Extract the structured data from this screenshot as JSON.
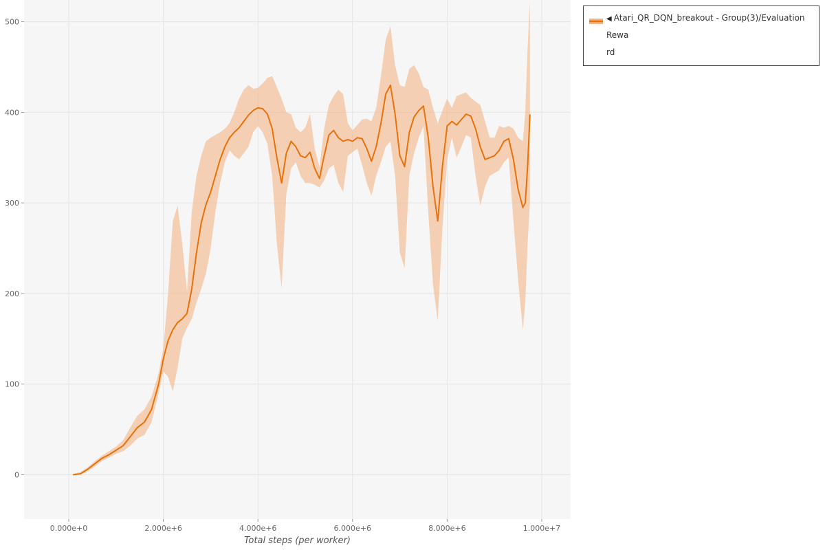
{
  "legend": {
    "marker": "◀",
    "label_lines": [
      "Atari_QR_DQN_breakout - Group(3)/Evaluation Rewa",
      "rd"
    ],
    "full_label": "Atari_QR_DQN_breakout - Group(3)/Evaluation Reward"
  },
  "chart_data": {
    "type": "line",
    "title": "",
    "xlabel": "Total steps (per worker)",
    "ylabel": "",
    "xlim": [
      -945000,
      10610000
    ],
    "ylim": [
      -49,
      524
    ],
    "grid": true,
    "legend_position": "top-right",
    "x_ticks": {
      "values": [
        0,
        2000000,
        4000000,
        6000000,
        8000000,
        10000000
      ],
      "labels": [
        "0.000e+0",
        "2.000e+6",
        "4.000e+6",
        "6.000e+6",
        "8.000e+6",
        "1.000e+7"
      ]
    },
    "y_ticks": {
      "values": [
        0,
        100,
        200,
        300,
        400,
        500
      ],
      "labels": [
        "0",
        "100",
        "200",
        "300",
        "400",
        "500"
      ]
    },
    "colors": {
      "plot_bg": "#f5f6f5",
      "grid": "#e3e6e4",
      "tick": "#999999",
      "tick_label": "#666666"
    },
    "series": [
      {
        "name": "Atari_QR_DQN_breakout - Group(3)/Evaluation Reward",
        "color": "#e8710a",
        "band_color": "#f3b587",
        "band_opacity": 0.6,
        "point_format": [
          "x",
          "mean",
          "lower",
          "upper"
        ],
        "points": [
          [
            100000,
            0,
            0,
            1
          ],
          [
            250000,
            1,
            0,
            3
          ],
          [
            400000,
            6,
            4,
            8
          ],
          [
            550000,
            12,
            9,
            15
          ],
          [
            700000,
            18,
            15,
            21
          ],
          [
            850000,
            22,
            19,
            26
          ],
          [
            1000000,
            27,
            23,
            31
          ],
          [
            1150000,
            32,
            26,
            38
          ],
          [
            1300000,
            42,
            32,
            52
          ],
          [
            1450000,
            52,
            40,
            65
          ],
          [
            1600000,
            58,
            44,
            72
          ],
          [
            1750000,
            72,
            58,
            86
          ],
          [
            1900000,
            100,
            90,
            112
          ],
          [
            2000000,
            128,
            114,
            140
          ],
          [
            2100000,
            148,
            108,
            200
          ],
          [
            2200000,
            160,
            92,
            280
          ],
          [
            2300000,
            168,
            118,
            297
          ],
          [
            2400000,
            172,
            150,
            255
          ],
          [
            2500000,
            178,
            162,
            202
          ],
          [
            2600000,
            205,
            172,
            290
          ],
          [
            2700000,
            245,
            190,
            330
          ],
          [
            2800000,
            278,
            205,
            352
          ],
          [
            2900000,
            298,
            222,
            368
          ],
          [
            3000000,
            312,
            250,
            372
          ],
          [
            3100000,
            330,
            290,
            375
          ],
          [
            3200000,
            348,
            322,
            378
          ],
          [
            3300000,
            362,
            345,
            382
          ],
          [
            3400000,
            372,
            358,
            388
          ],
          [
            3500000,
            378,
            352,
            400
          ],
          [
            3600000,
            383,
            348,
            415
          ],
          [
            3700000,
            390,
            355,
            425
          ],
          [
            3800000,
            397,
            362,
            430
          ],
          [
            3900000,
            402,
            378,
            426
          ],
          [
            4000000,
            405,
            385,
            427
          ],
          [
            4100000,
            404,
            378,
            432
          ],
          [
            4200000,
            398,
            365,
            438
          ],
          [
            4300000,
            382,
            330,
            440
          ],
          [
            4400000,
            350,
            255,
            428
          ],
          [
            4500000,
            322,
            206,
            415
          ],
          [
            4600000,
            355,
            310,
            400
          ],
          [
            4700000,
            368,
            338,
            398
          ],
          [
            4800000,
            362,
            345,
            383
          ],
          [
            4900000,
            352,
            330,
            378
          ],
          [
            5000000,
            350,
            322,
            383
          ],
          [
            5100000,
            356,
            322,
            398
          ],
          [
            5200000,
            338,
            320,
            360
          ],
          [
            5300000,
            327,
            317,
            340
          ],
          [
            5400000,
            352,
            325,
            382
          ],
          [
            5500000,
            375,
            338,
            408
          ],
          [
            5600000,
            380,
            342,
            418
          ],
          [
            5700000,
            372,
            322,
            425
          ],
          [
            5800000,
            368,
            312,
            420
          ],
          [
            5900000,
            370,
            352,
            388
          ],
          [
            6000000,
            368,
            356,
            380
          ],
          [
            6100000,
            372,
            360,
            386
          ],
          [
            6200000,
            371,
            342,
            392
          ],
          [
            6300000,
            360,
            322,
            393
          ],
          [
            6400000,
            346,
            308,
            390
          ],
          [
            6500000,
            362,
            330,
            405
          ],
          [
            6600000,
            388,
            345,
            440
          ],
          [
            6700000,
            420,
            362,
            480
          ],
          [
            6800000,
            430,
            368,
            495
          ],
          [
            6900000,
            398,
            330,
            452
          ],
          [
            7000000,
            352,
            245,
            430
          ],
          [
            7100000,
            340,
            228,
            428
          ],
          [
            7200000,
            378,
            330,
            448
          ],
          [
            7300000,
            395,
            355,
            452
          ],
          [
            7400000,
            402,
            372,
            443
          ],
          [
            7500000,
            407,
            385,
            428
          ],
          [
            7600000,
            372,
            290,
            425
          ],
          [
            7700000,
            318,
            210,
            405
          ],
          [
            7800000,
            280,
            170,
            388
          ],
          [
            7900000,
            340,
            272,
            402
          ],
          [
            8000000,
            385,
            348,
            415
          ],
          [
            8100000,
            390,
            372,
            405
          ],
          [
            8200000,
            386,
            350,
            418
          ],
          [
            8300000,
            392,
            362,
            420
          ],
          [
            8400000,
            398,
            375,
            422
          ],
          [
            8500000,
            396,
            372,
            416
          ],
          [
            8600000,
            382,
            330,
            412
          ],
          [
            8700000,
            362,
            297,
            408
          ],
          [
            8800000,
            348,
            318,
            390
          ],
          [
            8900000,
            350,
            330,
            372
          ],
          [
            9000000,
            352,
            333,
            372
          ],
          [
            9100000,
            358,
            336,
            385
          ],
          [
            9200000,
            368,
            345,
            383
          ],
          [
            9300000,
            371,
            350,
            385
          ],
          [
            9400000,
            348,
            280,
            382
          ],
          [
            9500000,
            315,
            215,
            372
          ],
          [
            9600000,
            295,
            160,
            368
          ],
          [
            9650000,
            300,
            190,
            400
          ],
          [
            9700000,
            340,
            255,
            470
          ],
          [
            9750000,
            397,
            300,
            522
          ]
        ]
      }
    ]
  }
}
